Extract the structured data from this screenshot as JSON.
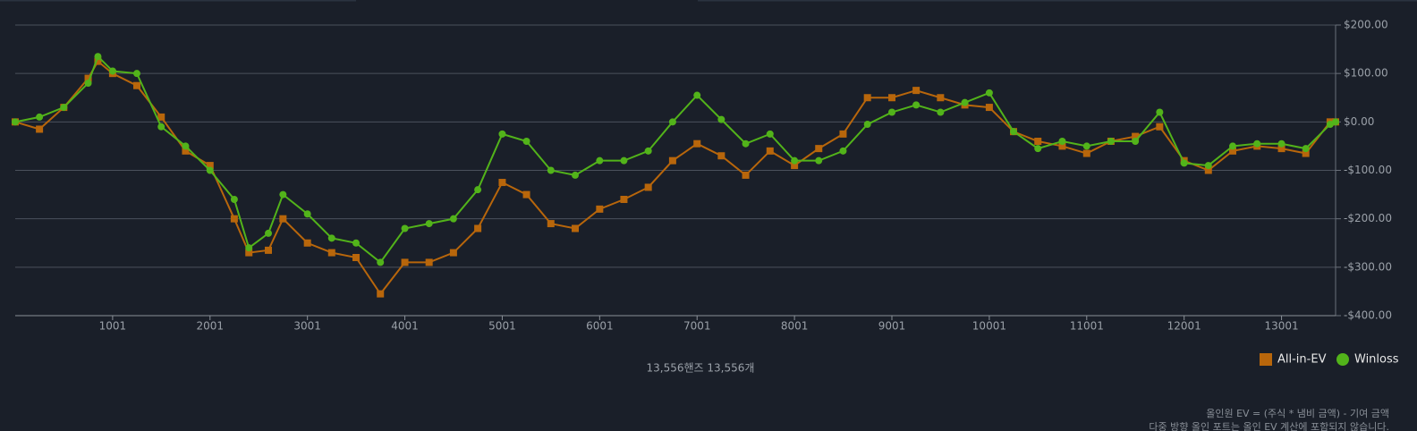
{
  "chart_data": {
    "type": "line",
    "x": [
      1,
      250,
      500,
      750,
      850,
      1001,
      1250,
      1500,
      1750,
      2001,
      2250,
      2400,
      2600,
      2750,
      3001,
      3250,
      3500,
      3750,
      4001,
      4250,
      4500,
      4750,
      5001,
      5250,
      5500,
      5750,
      6001,
      6250,
      6500,
      6750,
      7001,
      7250,
      7500,
      7750,
      8001,
      8250,
      8500,
      8750,
      9001,
      9250,
      9500,
      9750,
      10001,
      10250,
      10500,
      10750,
      11001,
      11250,
      11500,
      11750,
      12001,
      12250,
      12500,
      12750,
      13001,
      13250,
      13500,
      13556
    ],
    "series": [
      {
        "name": "All-in-EV",
        "color": "#b8660b",
        "marker": "square",
        "values": [
          0,
          -15,
          30,
          90,
          125,
          100,
          75,
          10,
          -60,
          -90,
          -200,
          -270,
          -265,
          -200,
          -250,
          -270,
          -280,
          -355,
          -290,
          -290,
          -270,
          -220,
          -125,
          -150,
          -210,
          -220,
          -180,
          -160,
          -135,
          -80,
          -45,
          -70,
          -110,
          -60,
          -90,
          -55,
          -25,
          50,
          50,
          65,
          50,
          35,
          30,
          -20,
          -40,
          -50,
          -65,
          -40,
          -30,
          -10,
          -80,
          -100,
          -60,
          -50,
          -55,
          -65,
          0,
          0
        ]
      },
      {
        "name": "Winloss",
        "color": "#52b31a",
        "marker": "circle",
        "values": [
          0,
          10,
          30,
          80,
          135,
          105,
          100,
          -10,
          -50,
          -100,
          -160,
          -260,
          -230,
          -150,
          -190,
          -240,
          -250,
          -290,
          -220,
          -210,
          -200,
          -140,
          -25,
          -40,
          -100,
          -110,
          -80,
          -80,
          -60,
          0,
          55,
          5,
          -45,
          -25,
          -80,
          -80,
          -60,
          -5,
          20,
          35,
          20,
          40,
          60,
          -20,
          -55,
          -40,
          -50,
          -40,
          -40,
          20,
          -85,
          -90,
          -50,
          -45,
          -45,
          -55,
          -5,
          0
        ]
      }
    ],
    "xlim": [
      1,
      13556
    ],
    "xticks": [
      1001,
      2001,
      3001,
      4001,
      5001,
      6001,
      7001,
      8001,
      9001,
      10001,
      11001,
      12001,
      13001
    ],
    "ylim": [
      -400,
      200
    ],
    "yticks": [
      {
        "value": -400,
        "label": "-$400.00"
      },
      {
        "value": -300,
        "label": "-$300.00"
      },
      {
        "value": -200,
        "label": "-$200.00"
      },
      {
        "value": -100,
        "label": "-$100.00"
      },
      {
        "value": 0,
        "label": "$0.00"
      },
      {
        "value": 100,
        "label": "$100.00"
      },
      {
        "value": 200,
        "label": "$200.00"
      }
    ],
    "grid": true,
    "legend": "bottom-right",
    "footer": "13,556핸즈 13,556개",
    "notes": [
      "올인원 EV = (주식 * 냄비 금액) - 기여 금액",
      "다중 방향 올인 포트는 올인 EV 계산에 포함되지 않습니다."
    ]
  }
}
